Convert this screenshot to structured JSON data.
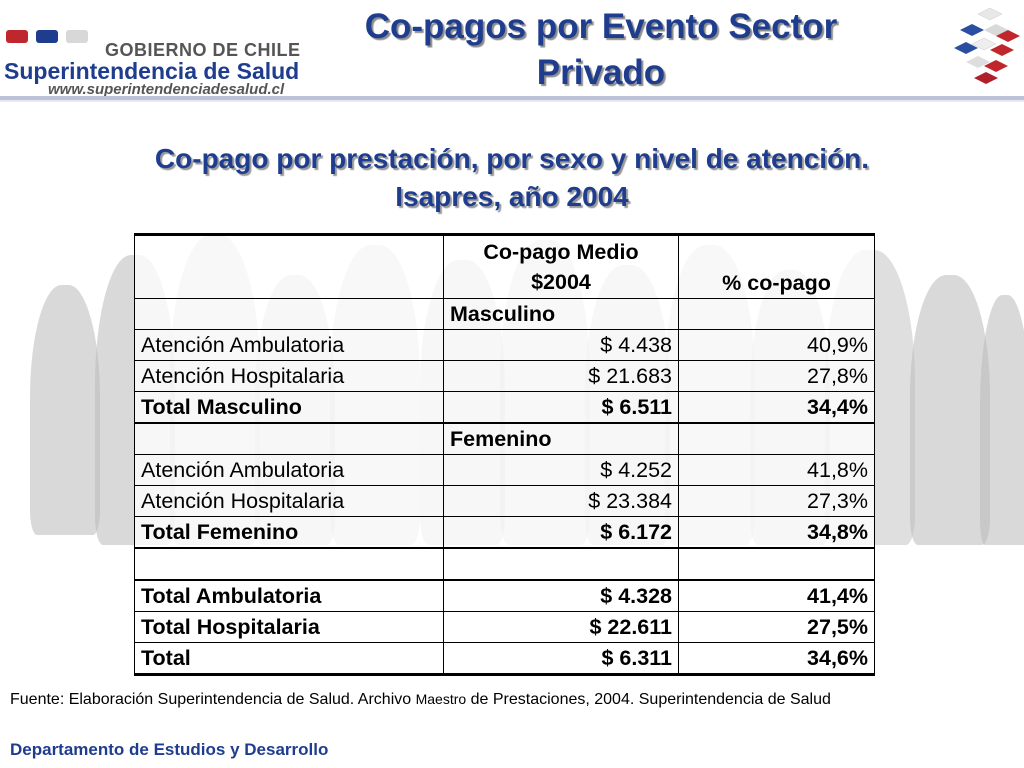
{
  "header": {
    "gob_text": "GOBIERNO DE CHILE",
    "org_name": "Superintendencia de Salud",
    "url": "www.superintendenciadesalud.cl",
    "title_line1": "Co-pagos por Evento Sector",
    "title_line2": "Privado",
    "brand_color": "#1f3d8e"
  },
  "subtitle": {
    "line1": "Co-pago por prestación, por sexo y nivel de atención.",
    "line2": "Isapres, año 2004"
  },
  "table": {
    "col1_header_line1": "Co-pago Medio",
    "col1_header_line2": "$2004",
    "col2_header": "% co-pago",
    "groups": [
      {
        "label": "Masculino",
        "rows": [
          {
            "name": "Atención Ambulatoria",
            "copago": "$ 4.438",
            "pct": "40,9%"
          },
          {
            "name": "Atención Hospitalaria",
            "copago": "$ 21.683",
            "pct": "27,8%"
          }
        ],
        "total": {
          "name": "Total Masculino",
          "copago": "$ 6.511",
          "pct": "34,4%"
        }
      },
      {
        "label": "Femenino",
        "rows": [
          {
            "name": "Atención Ambulatoria",
            "copago": "$ 4.252",
            "pct": "41,8%"
          },
          {
            "name": "Atención Hospitalaria",
            "copago": "$ 23.384",
            "pct": "27,3%"
          }
        ],
        "total": {
          "name": "Total Femenino",
          "copago": "$ 6.172",
          "pct": "34,8%"
        }
      }
    ],
    "totals": [
      {
        "name": "Total Ambulatoria",
        "copago": "$ 4.328",
        "pct": "41,4%"
      },
      {
        "name": "Total Hospitalaria",
        "copago": "$ 22.611",
        "pct": "27,5%"
      },
      {
        "name": "Total",
        "copago": "$ 6.311",
        "pct": "34,6%"
      }
    ]
  },
  "footer": {
    "source_part1": "Fuente: Elaboración Superintendencia de Salud. Archivo ",
    "source_small": "Maestro",
    "source_part2": " de Prestaciones, 2004. Superintendencia de Salud",
    "department": "Departamento de Estudios y Desarrollo"
  }
}
